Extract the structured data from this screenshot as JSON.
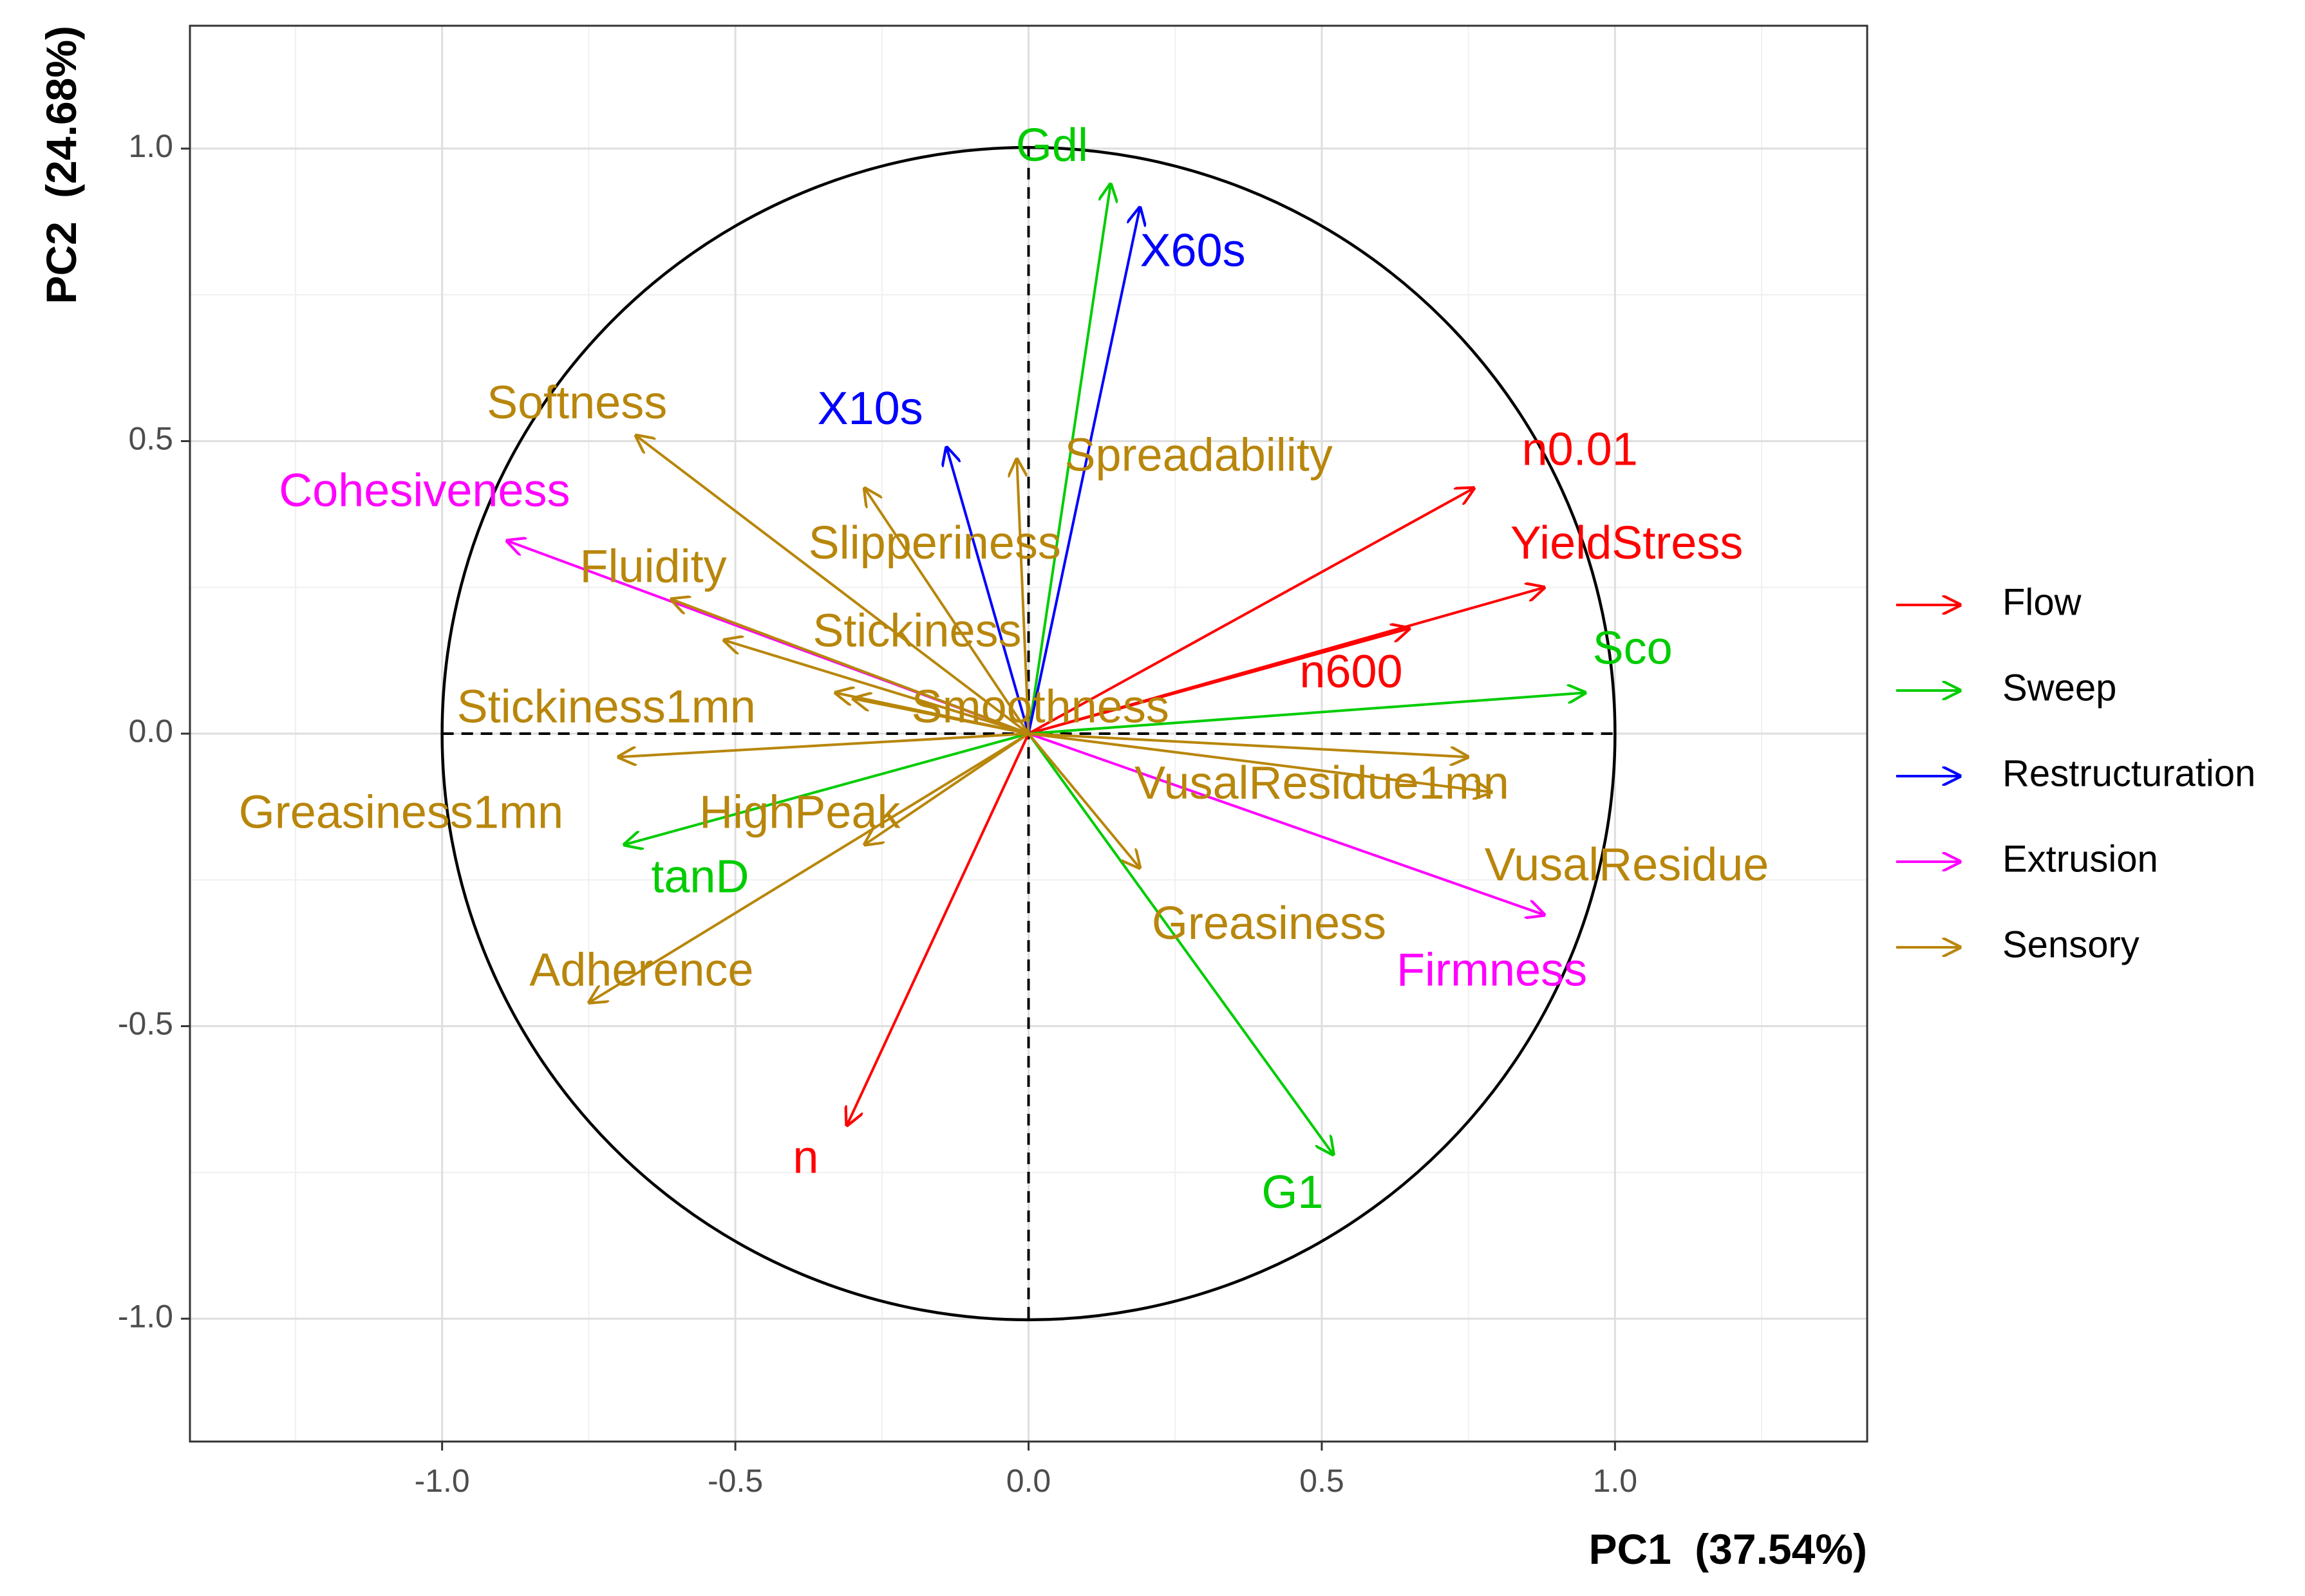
{
  "chart_data": {
    "type": "scatter",
    "subtype": "pca-correlation-circle",
    "xlabel": "PC1",
    "xlabel_pct": "(37.54%)",
    "ylabel": "PC2",
    "ylabel_pct": "(24.68%)",
    "xlim": [
      -1.43,
      1.43
    ],
    "ylim": [
      -1.21,
      1.21
    ],
    "xticks": [
      {
        "value": -1.0,
        "label": "-1.0"
      },
      {
        "value": -0.5,
        "label": "-0.5"
      },
      {
        "value": 0.0,
        "label": "0.0"
      },
      {
        "value": 0.5,
        "label": "0.5"
      },
      {
        "value": 1.0,
        "label": "1.0"
      }
    ],
    "yticks": [
      {
        "value": 1.0,
        "label": "1.0"
      },
      {
        "value": 0.5,
        "label": "0.5"
      },
      {
        "value": 0.0,
        "label": "0.0"
      },
      {
        "value": -0.5,
        "label": "-0.5"
      },
      {
        "value": -1.0,
        "label": "-1.0"
      }
    ],
    "grid": true,
    "unit_circle": true,
    "legend_position": "right",
    "groups": [
      {
        "name": "Flow",
        "color": "#ff0000"
      },
      {
        "name": "Sweep",
        "color": "#00cc00"
      },
      {
        "name": "Restructuration",
        "color": "#0000ff"
      },
      {
        "name": "Extrusion",
        "color": "#ff00ff"
      },
      {
        "name": "Sensory",
        "color": "#b8860b"
      }
    ],
    "variables": [
      {
        "name": "n0.01",
        "group": "Flow",
        "x": 0.76,
        "y": 0.42,
        "lx": 0.94,
        "ly": 0.48
      },
      {
        "name": "YieldStress",
        "group": "Flow",
        "x": 0.88,
        "y": 0.25,
        "lx": 1.02,
        "ly": 0.32
      },
      {
        "name": "n600",
        "group": "Flow",
        "x": 0.65,
        "y": 0.18,
        "lx": 0.55,
        "ly": 0.1
      },
      {
        "name": "n",
        "group": "Flow",
        "x": -0.31,
        "y": -0.67,
        "lx": -0.38,
        "ly": -0.73
      },
      {
        "name": "Gdl",
        "group": "Sweep",
        "x": 0.14,
        "y": 0.94,
        "lx": 0.04,
        "ly": 1.0
      },
      {
        "name": "Sco",
        "group": "Sweep",
        "x": 0.95,
        "y": 0.07,
        "lx": 1.03,
        "ly": 0.14
      },
      {
        "name": "tanD",
        "group": "Sweep",
        "x": -0.69,
        "y": -0.19,
        "lx": -0.56,
        "ly": -0.25
      },
      {
        "name": "G1",
        "group": "Sweep",
        "x": 0.52,
        "y": -0.72,
        "lx": 0.45,
        "ly": -0.79
      },
      {
        "name": "X60s",
        "group": "Restructuration",
        "x": 0.19,
        "y": 0.9,
        "lx": 0.28,
        "ly": 0.82
      },
      {
        "name": "X10s",
        "group": "Restructuration",
        "x": -0.14,
        "y": 0.49,
        "lx": -0.27,
        "ly": 0.55
      },
      {
        "name": "Cohesiveness",
        "group": "Extrusion",
        "x": -0.89,
        "y": 0.33,
        "lx": -1.03,
        "ly": 0.41
      },
      {
        "name": "Firmness",
        "group": "Extrusion",
        "x": 0.88,
        "y": -0.31,
        "lx": 0.79,
        "ly": -0.41
      },
      {
        "name": "Softness",
        "group": "Sensory",
        "x": -0.67,
        "y": 0.51,
        "lx": -0.77,
        "ly": 0.56
      },
      {
        "name": "Spreadability",
        "group": "Sensory",
        "x": -0.02,
        "y": 0.47,
        "lx": 0.29,
        "ly": 0.47
      },
      {
        "name": "Slipperiness",
        "group": "Sensory",
        "x": -0.28,
        "y": 0.42,
        "lx": -0.16,
        "ly": 0.32
      },
      {
        "name": "Fluidity",
        "group": "Sensory",
        "x": -0.61,
        "y": 0.23,
        "lx": -0.64,
        "ly": 0.28
      },
      {
        "name": "Stickiness",
        "group": "Sensory",
        "x": -0.52,
        "y": 0.16,
        "lx": -0.19,
        "ly": 0.17
      },
      {
        "name": "Stickiness1mn",
        "group": "Sensory",
        "x": -0.3,
        "y": 0.06,
        "lx": -0.72,
        "ly": 0.04
      },
      {
        "name": "Smoothness",
        "group": "Sensory",
        "x": -0.33,
        "y": 0.07,
        "lx": 0.02,
        "ly": 0.04
      },
      {
        "name": "Greasiness1mn",
        "group": "Sensory",
        "x": -0.7,
        "y": -0.04,
        "lx": -1.07,
        "ly": -0.14
      },
      {
        "name": "HighPeak",
        "group": "Sensory",
        "x": -0.28,
        "y": -0.19,
        "lx": -0.39,
        "ly": -0.14
      },
      {
        "name": "VusalResidue1mn",
        "group": "Sensory",
        "x": 0.75,
        "y": -0.04,
        "lx": 0.5,
        "ly": -0.09
      },
      {
        "name": "VusalResidue",
        "group": "Sensory",
        "x": 0.79,
        "y": -0.1,
        "lx": 1.02,
        "ly": -0.23
      },
      {
        "name": "Greasiness",
        "group": "Sensory",
        "x": 0.19,
        "y": -0.23,
        "lx": 0.41,
        "ly": -0.33
      },
      {
        "name": "Adherence",
        "group": "Sensory",
        "x": -0.75,
        "y": -0.46,
        "lx": -0.66,
        "ly": -0.41
      }
    ]
  }
}
